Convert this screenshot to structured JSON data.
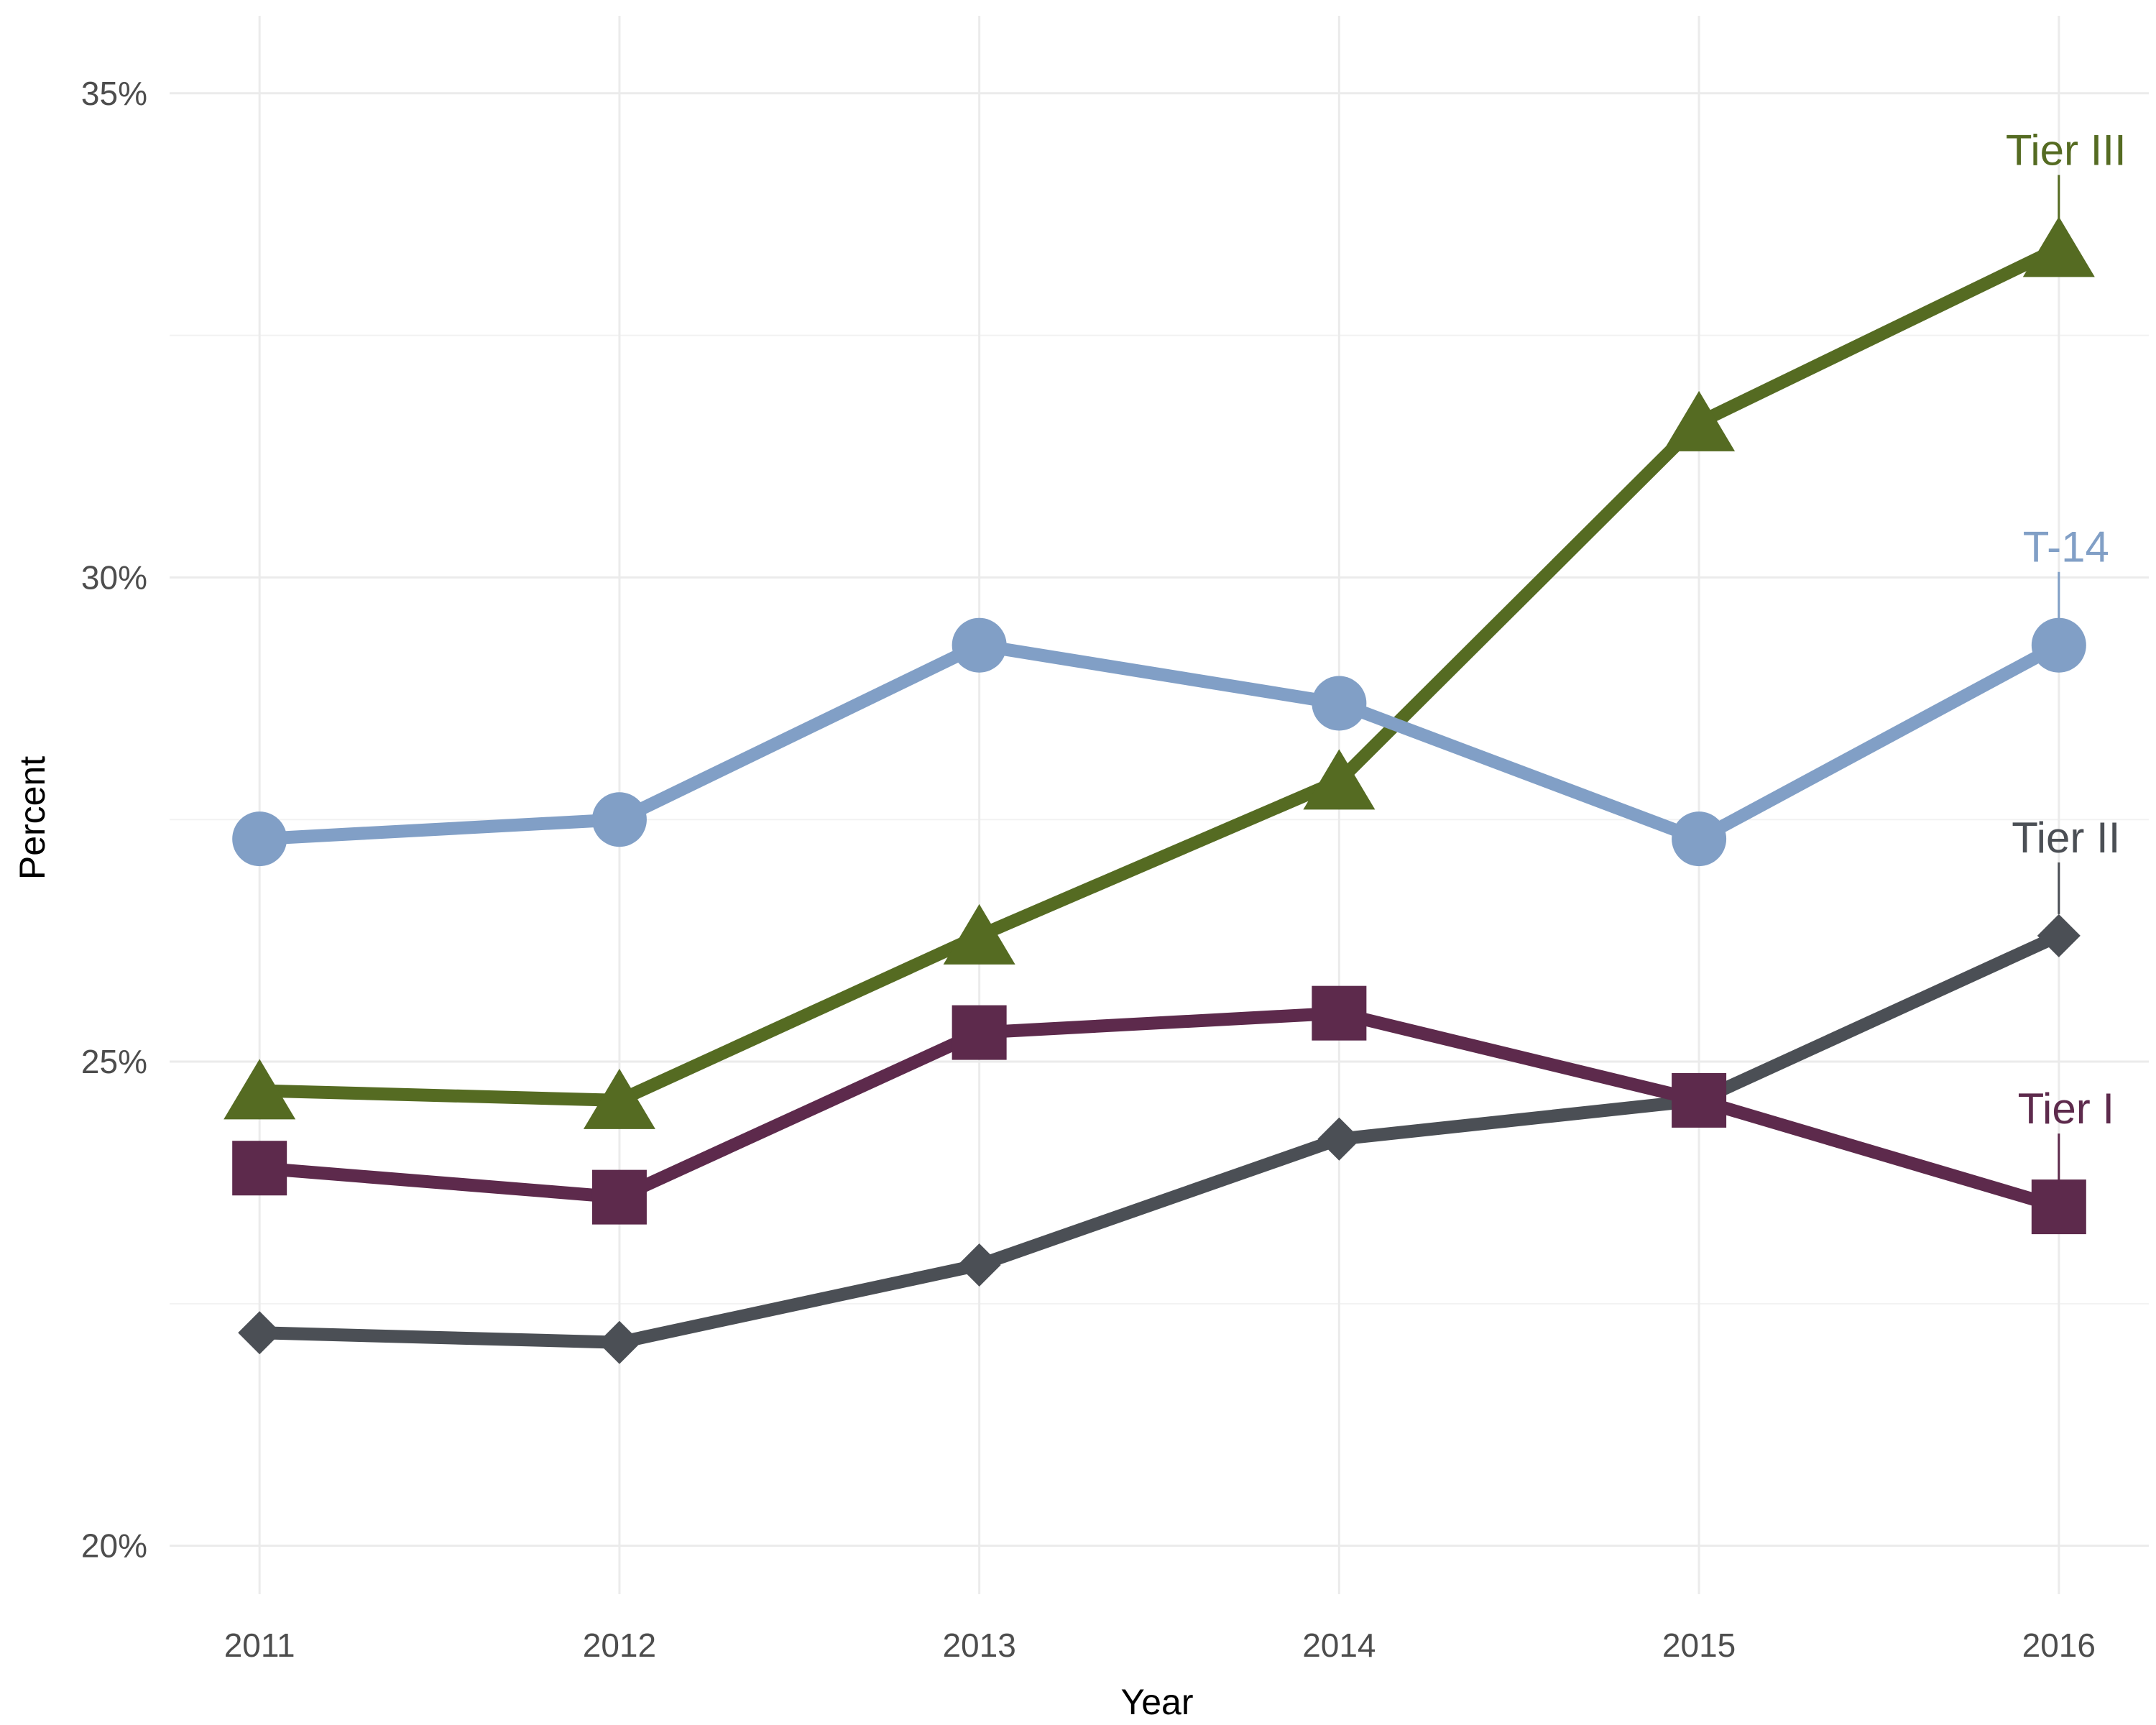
{
  "chart_data": {
    "type": "line",
    "title": "",
    "xlabel": "Year",
    "ylabel": "Percent",
    "x": [
      2011,
      2012,
      2013,
      2014,
      2015,
      2016
    ],
    "x_tick_labels": [
      "2011",
      "2012",
      "2013",
      "2014",
      "2015",
      "2016"
    ],
    "ylim": [
      19.5,
      35.8
    ],
    "y_ticks": [
      20,
      25,
      30,
      35
    ],
    "y_tick_labels": [
      "20%",
      "25%",
      "30%",
      "35%"
    ],
    "grid": true,
    "legend": "none (direct labels at right end of each line)",
    "series": [
      {
        "name": "Tier III",
        "color": "#556b22",
        "marker": "triangle",
        "values": [
          24.7,
          24.6,
          26.3,
          27.9,
          31.6,
          33.4
        ]
      },
      {
        "name": "T-14",
        "color": "#819fc6",
        "marker": "circle",
        "values": [
          27.3,
          27.5,
          29.3,
          28.7,
          27.3,
          29.3
        ]
      },
      {
        "name": "Tier II",
        "color": "#4b4f55",
        "marker": "diamond",
        "values": [
          22.2,
          22.1,
          22.9,
          24.2,
          24.6,
          26.3
        ]
      },
      {
        "name": "Tier I",
        "color": "#5d2a4c",
        "marker": "square",
        "values": [
          23.9,
          23.6,
          25.3,
          25.5,
          24.6,
          23.5
        ]
      }
    ]
  }
}
